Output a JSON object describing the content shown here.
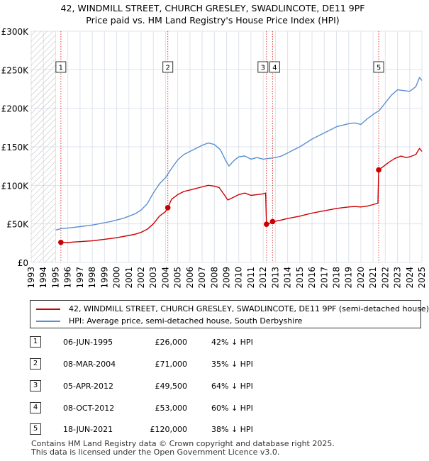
{
  "title_line1": "42, WINDMILL STREET, CHURCH GRESLEY, SWADLINCOTE, DE11 9PF",
  "title_line2": "Price paid vs. HM Land Registry's House Price Index (HPI)",
  "colors": {
    "property": "#cc0000",
    "hpi": "#5b8fd0",
    "grid": "#dde3ec",
    "bg": "#ffffff"
  },
  "chart_data": {
    "type": "line",
    "title": "42, WINDMILL STREET, CHURCH GRESLEY, SWADLINCOTE, DE11 9PF — Price paid vs. HM Land Registry's House Price Index (HPI)",
    "xlabel": "",
    "ylabel": "",
    "xlim": [
      1993,
      2025
    ],
    "ylim": [
      0,
      300000
    ],
    "x_ticks": [
      "1993",
      "1994",
      "1995",
      "1996",
      "1997",
      "1998",
      "1999",
      "2000",
      "2001",
      "2002",
      "2003",
      "2004",
      "2005",
      "2006",
      "2007",
      "2008",
      "2009",
      "2010",
      "2011",
      "2012",
      "2013",
      "2014",
      "2015",
      "2016",
      "2017",
      "2018",
      "2019",
      "2020",
      "2021",
      "2022",
      "2023",
      "2024",
      "2025"
    ],
    "y_ticks": [
      {
        "value": 0,
        "label": "£0"
      },
      {
        "value": 50000,
        "label": "£50K"
      },
      {
        "value": 100000,
        "label": "£100K"
      },
      {
        "value": 150000,
        "label": "£150K"
      },
      {
        "value": 200000,
        "label": "£200K"
      },
      {
        "value": 250000,
        "label": "£250K"
      },
      {
        "value": 300000,
        "label": "£300K"
      }
    ],
    "hatched_range": [
      1993,
      1995.0
    ],
    "series": [
      {
        "name": "42, WINDMILL STREET, CHURCH GRESLEY, SWADLINCOTE, DE11 9PF (semi-detached house)",
        "color": "#cc0000",
        "points": [
          [
            1995.43,
            26000
          ],
          [
            1996.0,
            25800
          ],
          [
            1996.5,
            26500
          ],
          [
            1997.0,
            27000
          ],
          [
            1997.5,
            27500
          ],
          [
            1998.0,
            28000
          ],
          [
            1998.5,
            29000
          ],
          [
            1999.0,
            30000
          ],
          [
            1999.5,
            31000
          ],
          [
            2000.0,
            32000
          ],
          [
            2000.5,
            33500
          ],
          [
            2001.0,
            35000
          ],
          [
            2001.5,
            36500
          ],
          [
            2002.0,
            39000
          ],
          [
            2002.5,
            43000
          ],
          [
            2003.0,
            50000
          ],
          [
            2003.5,
            60000
          ],
          [
            2004.0,
            66000
          ],
          [
            2004.19,
            71000
          ],
          [
            2004.5,
            82000
          ],
          [
            2005.0,
            88000
          ],
          [
            2005.5,
            92000
          ],
          [
            2006.0,
            94000
          ],
          [
            2006.5,
            96000
          ],
          [
            2007.0,
            98000
          ],
          [
            2007.5,
            100000
          ],
          [
            2008.0,
            99000
          ],
          [
            2008.4,
            97000
          ],
          [
            2008.8,
            88000
          ],
          [
            2009.1,
            81000
          ],
          [
            2009.5,
            84000
          ],
          [
            2010.0,
            88000
          ],
          [
            2010.5,
            90000
          ],
          [
            2011.0,
            87000
          ],
          [
            2011.5,
            88000
          ],
          [
            2012.0,
            89000
          ],
          [
            2012.2,
            90000
          ],
          [
            2012.27,
            49500
          ],
          [
            2012.5,
            50500
          ],
          [
            2012.77,
            53000
          ],
          [
            2013.0,
            53500
          ],
          [
            2013.5,
            55000
          ],
          [
            2014.0,
            57000
          ],
          [
            2014.5,
            58500
          ],
          [
            2015.0,
            60000
          ],
          [
            2015.5,
            62000
          ],
          [
            2016.0,
            64000
          ],
          [
            2016.5,
            65500
          ],
          [
            2017.0,
            67000
          ],
          [
            2017.5,
            68500
          ],
          [
            2018.0,
            70000
          ],
          [
            2018.5,
            71000
          ],
          [
            2019.0,
            72000
          ],
          [
            2019.5,
            72500
          ],
          [
            2020.0,
            72000
          ],
          [
            2020.5,
            73000
          ],
          [
            2021.0,
            75000
          ],
          [
            2021.4,
            77000
          ],
          [
            2021.46,
            120000
          ],
          [
            2021.8,
            124000
          ],
          [
            2022.3,
            130000
          ],
          [
            2022.8,
            135000
          ],
          [
            2023.3,
            138000
          ],
          [
            2023.7,
            136000
          ],
          [
            2024.0,
            137000
          ],
          [
            2024.5,
            140000
          ],
          [
            2024.8,
            148000
          ],
          [
            2025.0,
            144000
          ]
        ]
      },
      {
        "name": "HPI: Average price, semi-detached house, South Derbyshire",
        "color": "#5b8fd0",
        "points": [
          [
            1995.0,
            42000
          ],
          [
            1995.5,
            44000
          ],
          [
            1996.0,
            44500
          ],
          [
            1996.5,
            45500
          ],
          [
            1997.0,
            46500
          ],
          [
            1997.5,
            47500
          ],
          [
            1998.0,
            48500
          ],
          [
            1998.5,
            50000
          ],
          [
            1999.0,
            51500
          ],
          [
            1999.5,
            53000
          ],
          [
            2000.0,
            55000
          ],
          [
            2000.5,
            57000
          ],
          [
            2001.0,
            60000
          ],
          [
            2001.5,
            63000
          ],
          [
            2002.0,
            68000
          ],
          [
            2002.5,
            76000
          ],
          [
            2003.0,
            90000
          ],
          [
            2003.5,
            102000
          ],
          [
            2004.0,
            110000
          ],
          [
            2004.5,
            122000
          ],
          [
            2005.0,
            133000
          ],
          [
            2005.5,
            140000
          ],
          [
            2006.0,
            144000
          ],
          [
            2006.5,
            148000
          ],
          [
            2007.0,
            152000
          ],
          [
            2007.5,
            155000
          ],
          [
            2008.0,
            153000
          ],
          [
            2008.5,
            146000
          ],
          [
            2008.9,
            133000
          ],
          [
            2009.2,
            125000
          ],
          [
            2009.6,
            132000
          ],
          [
            2010.0,
            137000
          ],
          [
            2010.5,
            138000
          ],
          [
            2011.0,
            134000
          ],
          [
            2011.5,
            136000
          ],
          [
            2012.0,
            134000
          ],
          [
            2012.5,
            135000
          ],
          [
            2013.0,
            136000
          ],
          [
            2013.5,
            138000
          ],
          [
            2014.0,
            142000
          ],
          [
            2014.5,
            146000
          ],
          [
            2015.0,
            150000
          ],
          [
            2015.5,
            155000
          ],
          [
            2016.0,
            160000
          ],
          [
            2016.5,
            164000
          ],
          [
            2017.0,
            168000
          ],
          [
            2017.5,
            172000
          ],
          [
            2018.0,
            176000
          ],
          [
            2018.5,
            178000
          ],
          [
            2019.0,
            180000
          ],
          [
            2019.5,
            181000
          ],
          [
            2020.0,
            179000
          ],
          [
            2020.5,
            186000
          ],
          [
            2021.0,
            192000
          ],
          [
            2021.5,
            197000
          ],
          [
            2022.0,
            207000
          ],
          [
            2022.5,
            217000
          ],
          [
            2023.0,
            224000
          ],
          [
            2023.5,
            223000
          ],
          [
            2024.0,
            222000
          ],
          [
            2024.5,
            228000
          ],
          [
            2024.8,
            240000
          ],
          [
            2025.0,
            236000
          ]
        ]
      }
    ],
    "sales": [
      {
        "num": "1",
        "x": 1995.43,
        "value": 26000
      },
      {
        "num": "2",
        "x": 2004.19,
        "value": 71000
      },
      {
        "num": "3",
        "x": 2012.27,
        "value": 49500
      },
      {
        "num": "4",
        "x": 2012.77,
        "value": 53000
      },
      {
        "num": "5",
        "x": 2021.46,
        "value": 120000
      }
    ]
  },
  "legend": {
    "property_label": "42, WINDMILL STREET, CHURCH GRESLEY, SWADLINCOTE, DE11 9PF (semi-detached house)",
    "hpi_label": "HPI: Average price, semi-detached house, South Derbyshire"
  },
  "sales_table": [
    {
      "num": "1",
      "date": "06-JUN-1995",
      "price": "£26,000",
      "hpi": "42% ↓ HPI"
    },
    {
      "num": "2",
      "date": "08-MAR-2004",
      "price": "£71,000",
      "hpi": "35% ↓ HPI"
    },
    {
      "num": "3",
      "date": "05-APR-2012",
      "price": "£49,500",
      "hpi": "64% ↓ HPI"
    },
    {
      "num": "4",
      "date": "08-OCT-2012",
      "price": "£53,000",
      "hpi": "60% ↓ HPI"
    },
    {
      "num": "5",
      "date": "18-JUN-2021",
      "price": "£120,000",
      "hpi": "38% ↓ HPI"
    }
  ],
  "footer_line1": "Contains HM Land Registry data © Crown copyright and database right 2025.",
  "footer_line2": "This data is licensed under the Open Government Licence v3.0."
}
